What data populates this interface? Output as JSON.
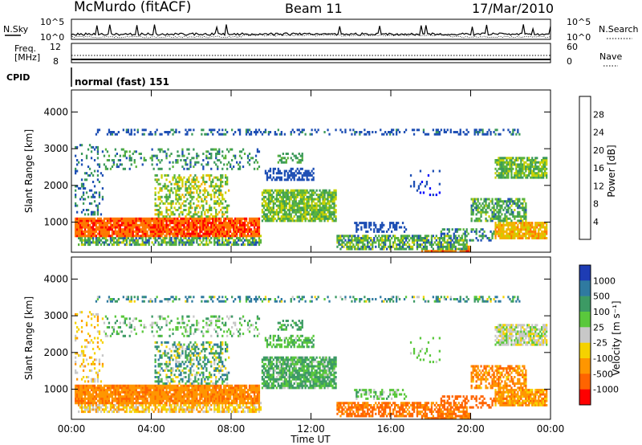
{
  "header": {
    "station": "McMurdo (fitACF)",
    "beam": "Beam 11",
    "date": "17/Mar/2010"
  },
  "top_panels": {
    "nsky_label": "N.Sky",
    "nsearch_label": "N.Search",
    "nsky_ticks": [
      "10^5",
      "10^0"
    ],
    "nsearch_ticks": [
      "10^5",
      "10^0"
    ],
    "freq_label_1": "Freq.",
    "freq_label_2": "[MHz]",
    "freq_ticks": [
      "12",
      "8"
    ],
    "nave_label": "Nave",
    "nave_ticks": [
      "60",
      "0"
    ],
    "cpid_label": "CPID",
    "cpid_value": "normal (fast) 151"
  },
  "colors": {
    "power": [
      "#0000ff",
      "#1e4fb4",
      "#3c9a5a",
      "#5ab43c",
      "#c8d200",
      "#f2b400",
      "#ff7800",
      "#ff0000"
    ],
    "velocity": [
      "#1e3cb4",
      "#2f7aa0",
      "#3c9a64",
      "#5ac83c",
      "#c8c8c8",
      "#f5d200",
      "#ff9600",
      "#ff6400",
      "#ff0000"
    ]
  },
  "chart_data": [
    {
      "type": "heatmap",
      "name": "power",
      "ylabel": "Slant Range [km]",
      "yticks": [
        "1000",
        "2000",
        "3000",
        "4000"
      ],
      "ylim": [
        180,
        4600
      ],
      "xlim": [
        0,
        24
      ],
      "colorbar_label": "Power [dB]",
      "colorbar_ticks": [
        "4",
        "8",
        "12",
        "16",
        "20",
        "24",
        "28"
      ],
      "colorbar_range": [
        0,
        32
      ]
    },
    {
      "type": "heatmap",
      "name": "velocity",
      "ylabel": "Slant Range [km]",
      "yticks": [
        "1000",
        "2000",
        "3000",
        "4000"
      ],
      "ylim": [
        180,
        4600
      ],
      "xlim": [
        0,
        24
      ],
      "xlabel": "Time UT",
      "xticks": [
        "00:00",
        "04:00",
        "08:00",
        "12:00",
        "16:00",
        "20:00",
        "00:00"
      ],
      "colorbar_label": "Velocity [m s⁻¹]",
      "colorbar_ticks": [
        "1000",
        "500",
        "100",
        "25",
        "-25",
        "-100",
        "-500",
        "-1000"
      ]
    }
  ]
}
